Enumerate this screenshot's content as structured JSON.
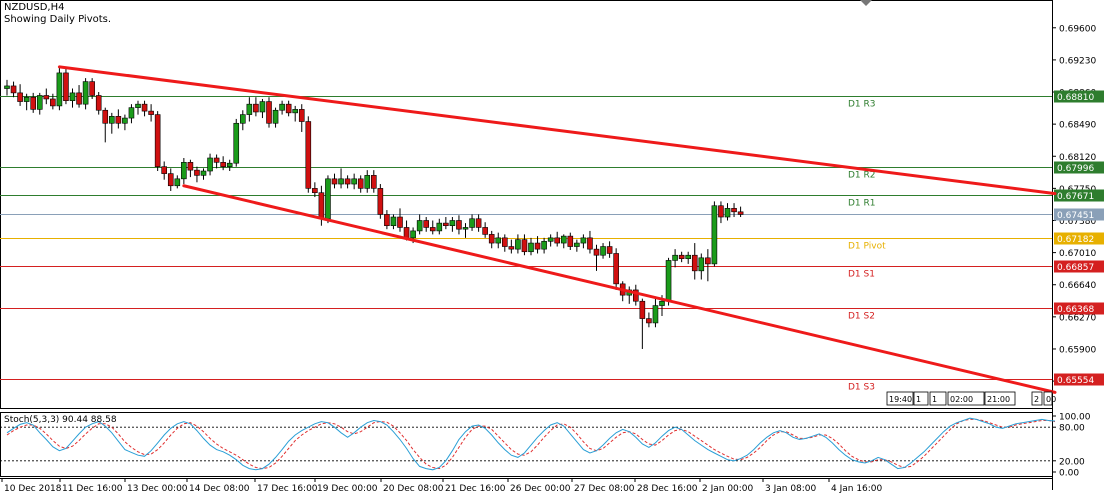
{
  "header": {
    "symbol": "NZDUSD,H4",
    "subtitle": "Showing Daily Pivots."
  },
  "indicator": {
    "label": "Stoch(5,3,3) 90.44 88.58"
  },
  "time_labels": [
    "10 Dec 2018",
    "11 Dec 16:00",
    "13 Dec 00:00",
    "14 Dec 08:00",
    "17 Dec 16:00",
    "19 Dec 00:00",
    "20 Dec 08:00",
    "21 Dec 16:00",
    "26 Dec 00:00",
    "27 Dec 08:00",
    "28 Dec 16:00",
    "2 Jan 00:00",
    "3 Jan 08:00",
    "4 Jan 16:00"
  ],
  "period_buttons": [
    "19:40",
    "1",
    "1",
    "02:00",
    "21:00",
    "2",
    "00"
  ],
  "colors": {
    "bull": "#1a9b1a",
    "bear": "#d01010",
    "trend": "#ee1a1a",
    "resistance": "#2e7d2e",
    "support": "#d42020",
    "pivot": "#e7b000",
    "current": "#8aa0b8",
    "stoch_main": "#2a9fd6",
    "stoch_signal": "#e03030"
  },
  "chart_data": {
    "type": "candlestick",
    "ylim": [
      0.6522,
      0.6992
    ],
    "y_ticks": [
      "0.69600",
      "0.69230",
      "0.68860",
      "0.68490",
      "0.68120",
      "0.67750",
      "0.67380",
      "0.67010",
      "0.66640",
      "0.66270",
      "0.65900",
      "0.65530"
    ],
    "pivots": [
      {
        "label": "D1 R3",
        "value": 0.6881,
        "tag": "0.68810",
        "kind": "resistance"
      },
      {
        "label": "D1 R2",
        "value": 0.67996,
        "tag": "0.67996",
        "kind": "resistance"
      },
      {
        "label": "D1 R1",
        "value": 0.67671,
        "tag": "0.67671",
        "kind": "resistance"
      },
      {
        "label": "D1 Pivot",
        "value": 0.67182,
        "tag": "0.67182",
        "kind": "pivot"
      },
      {
        "label": "D1 S1",
        "value": 0.66857,
        "tag": "0.66857",
        "kind": "support"
      },
      {
        "label": "D1 S2",
        "value": 0.66368,
        "tag": "0.66368",
        "kind": "support"
      },
      {
        "label": "D1 S3",
        "value": 0.65554,
        "tag": "0.65554",
        "kind": "support"
      }
    ],
    "current_price": {
      "value": 0.67451,
      "tag": "0.67451"
    },
    "candles": [
      [
        0.689,
        0.69,
        0.6882,
        0.6893
      ],
      [
        0.6893,
        0.6898,
        0.688,
        0.6885
      ],
      [
        0.6885,
        0.6895,
        0.687,
        0.6875
      ],
      [
        0.6875,
        0.6884,
        0.6865,
        0.688
      ],
      [
        0.688,
        0.6885,
        0.6862,
        0.6866
      ],
      [
        0.6866,
        0.6885,
        0.686,
        0.6882
      ],
      [
        0.6882,
        0.689,
        0.6872,
        0.6878
      ],
      [
        0.6878,
        0.6884,
        0.6866,
        0.687
      ],
      [
        0.687,
        0.6915,
        0.6865,
        0.6908
      ],
      [
        0.6908,
        0.6914,
        0.6872,
        0.6876
      ],
      [
        0.6876,
        0.689,
        0.6868,
        0.6885
      ],
      [
        0.6885,
        0.6894,
        0.6868,
        0.6872
      ],
      [
        0.6872,
        0.6902,
        0.6866,
        0.6898
      ],
      [
        0.6898,
        0.6902,
        0.6878,
        0.6882
      ],
      [
        0.6882,
        0.6886,
        0.686,
        0.6865
      ],
      [
        0.6865,
        0.6868,
        0.6828,
        0.685
      ],
      [
        0.685,
        0.6862,
        0.6838,
        0.6858
      ],
      [
        0.6858,
        0.6866,
        0.6844,
        0.685
      ],
      [
        0.685,
        0.686,
        0.6842,
        0.6856
      ],
      [
        0.6856,
        0.6872,
        0.685,
        0.6868
      ],
      [
        0.6868,
        0.6876,
        0.686,
        0.6872
      ],
      [
        0.6872,
        0.6876,
        0.6858,
        0.6864
      ],
      [
        0.6864,
        0.6872,
        0.6852,
        0.686
      ],
      [
        0.686,
        0.6864,
        0.6795,
        0.68
      ],
      [
        0.68,
        0.6806,
        0.6785,
        0.6792
      ],
      [
        0.6792,
        0.6798,
        0.6772,
        0.6778
      ],
      [
        0.6778,
        0.679,
        0.6775,
        0.6786
      ],
      [
        0.6786,
        0.681,
        0.678,
        0.6805
      ],
      [
        0.6805,
        0.6808,
        0.6788,
        0.6796
      ],
      [
        0.6796,
        0.68,
        0.6782,
        0.679
      ],
      [
        0.679,
        0.6798,
        0.6785,
        0.6795
      ],
      [
        0.6795,
        0.6815,
        0.679,
        0.681
      ],
      [
        0.681,
        0.6814,
        0.6798,
        0.6805
      ],
      [
        0.6805,
        0.6812,
        0.6796,
        0.68
      ],
      [
        0.68,
        0.6808,
        0.6795,
        0.6804
      ],
      [
        0.6804,
        0.6855,
        0.68,
        0.685
      ],
      [
        0.685,
        0.6865,
        0.6842,
        0.686
      ],
      [
        0.686,
        0.688,
        0.6852,
        0.6872
      ],
      [
        0.6872,
        0.688,
        0.6858,
        0.6863
      ],
      [
        0.6863,
        0.6878,
        0.6856,
        0.6875
      ],
      [
        0.6875,
        0.688,
        0.6845,
        0.685
      ],
      [
        0.685,
        0.6868,
        0.6845,
        0.6865
      ],
      [
        0.6865,
        0.6876,
        0.686,
        0.6872
      ],
      [
        0.6872,
        0.6876,
        0.6858,
        0.6862
      ],
      [
        0.6862,
        0.687,
        0.6852,
        0.6866
      ],
      [
        0.6866,
        0.6872,
        0.684,
        0.6852
      ],
      [
        0.6852,
        0.6858,
        0.677,
        0.6775
      ],
      [
        0.6775,
        0.6782,
        0.6765,
        0.677
      ],
      [
        0.677,
        0.6778,
        0.6732,
        0.674
      ],
      [
        0.674,
        0.679,
        0.6735,
        0.6786
      ],
      [
        0.6786,
        0.6792,
        0.6775,
        0.678
      ],
      [
        0.678,
        0.6798,
        0.6775,
        0.6786
      ],
      [
        0.6786,
        0.679,
        0.6775,
        0.678
      ],
      [
        0.678,
        0.6792,
        0.6774,
        0.6786
      ],
      [
        0.6786,
        0.679,
        0.677,
        0.6775
      ],
      [
        0.6775,
        0.6796,
        0.677,
        0.679
      ],
      [
        0.679,
        0.6796,
        0.677,
        0.6775
      ],
      [
        0.6775,
        0.678,
        0.674,
        0.6745
      ],
      [
        0.6745,
        0.675,
        0.6728,
        0.6732
      ],
      [
        0.6732,
        0.6745,
        0.6728,
        0.6742
      ],
      [
        0.6742,
        0.6752,
        0.6725,
        0.673
      ],
      [
        0.673,
        0.6738,
        0.6715,
        0.6718
      ],
      [
        0.6718,
        0.673,
        0.6712,
        0.6726
      ],
      [
        0.6726,
        0.6745,
        0.6722,
        0.6738
      ],
      [
        0.6738,
        0.6742,
        0.6725,
        0.673
      ],
      [
        0.673,
        0.6738,
        0.6722,
        0.6726
      ],
      [
        0.6726,
        0.674,
        0.6722,
        0.6735
      ],
      [
        0.6735,
        0.6742,
        0.6728,
        0.6732
      ],
      [
        0.6732,
        0.6742,
        0.6725,
        0.6738
      ],
      [
        0.6738,
        0.6744,
        0.6722,
        0.6728
      ],
      [
        0.6728,
        0.6735,
        0.6718,
        0.673
      ],
      [
        0.673,
        0.6745,
        0.6726,
        0.674
      ],
      [
        0.674,
        0.6745,
        0.6725,
        0.673
      ],
      [
        0.673,
        0.6736,
        0.6718,
        0.6722
      ],
      [
        0.6722,
        0.6726,
        0.6706,
        0.6712
      ],
      [
        0.6712,
        0.6724,
        0.6706,
        0.6718
      ],
      [
        0.6718,
        0.6722,
        0.6702,
        0.6708
      ],
      [
        0.6708,
        0.6716,
        0.67,
        0.6705
      ],
      [
        0.6705,
        0.6722,
        0.67,
        0.6716
      ],
      [
        0.6716,
        0.6722,
        0.6698,
        0.6702
      ],
      [
        0.6702,
        0.6718,
        0.6698,
        0.6712
      ],
      [
        0.6712,
        0.672,
        0.67,
        0.6705
      ],
      [
        0.6705,
        0.6718,
        0.67,
        0.6714
      ],
      [
        0.6714,
        0.6722,
        0.6708,
        0.6718
      ],
      [
        0.6718,
        0.6725,
        0.6708,
        0.6712
      ],
      [
        0.6712,
        0.6722,
        0.6706,
        0.672
      ],
      [
        0.672,
        0.6724,
        0.6704,
        0.6708
      ],
      [
        0.6708,
        0.6716,
        0.6702,
        0.6712
      ],
      [
        0.6712,
        0.6722,
        0.6706,
        0.6718
      ],
      [
        0.6718,
        0.6726,
        0.67,
        0.6705
      ],
      [
        0.6705,
        0.671,
        0.668,
        0.6698
      ],
      [
        0.6698,
        0.6712,
        0.6694,
        0.6708
      ],
      [
        0.6708,
        0.6714,
        0.6695,
        0.67
      ],
      [
        0.67,
        0.6706,
        0.6658,
        0.6665
      ],
      [
        0.6665,
        0.6668,
        0.6645,
        0.6652
      ],
      [
        0.6652,
        0.6662,
        0.6642,
        0.6658
      ],
      [
        0.6658,
        0.6664,
        0.664,
        0.6645
      ],
      [
        0.6645,
        0.6648,
        0.659,
        0.6625
      ],
      [
        0.6625,
        0.6632,
        0.6615,
        0.662
      ],
      [
        0.662,
        0.6648,
        0.6615,
        0.664
      ],
      [
        0.664,
        0.6652,
        0.6628,
        0.6645
      ],
      [
        0.6645,
        0.6695,
        0.664,
        0.6692
      ],
      [
        0.6692,
        0.6705,
        0.6684,
        0.6698
      ],
      [
        0.6698,
        0.6702,
        0.669,
        0.6694
      ],
      [
        0.6694,
        0.6702,
        0.6688,
        0.6698
      ],
      [
        0.6698,
        0.6712,
        0.667,
        0.668
      ],
      [
        0.668,
        0.67,
        0.667,
        0.6695
      ],
      [
        0.6695,
        0.6705,
        0.6668,
        0.6688
      ],
      [
        0.6688,
        0.676,
        0.6685,
        0.6755
      ],
      [
        0.6755,
        0.676,
        0.6735,
        0.6742
      ],
      [
        0.6742,
        0.6758,
        0.6738,
        0.6752
      ],
      [
        0.6752,
        0.6758,
        0.6742,
        0.6748
      ],
      [
        0.6748,
        0.6754,
        0.6742,
        0.6745
      ]
    ],
    "trendlines": [
      {
        "name": "upper",
        "from": {
          "bar": 8,
          "price": 0.6915
        },
        "to": {
          "bar": 160,
          "price": 0.6769
        }
      },
      {
        "name": "lower",
        "from": {
          "bar": 27,
          "price": 0.6778
        },
        "to": {
          "bar": 160,
          "price": 0.654
        }
      }
    ],
    "stochastic": {
      "levels": [
        100,
        80,
        20,
        0
      ],
      "level_labels": [
        "100.00",
        "80.00",
        "20.00",
        "0.00"
      ],
      "main": [
        70,
        78,
        85,
        88,
        84,
        70,
        58,
        45,
        38,
        42,
        55,
        68,
        80,
        86,
        90,
        82,
        70,
        55,
        40,
        35,
        30,
        28,
        38,
        52,
        66,
        78,
        86,
        90,
        86,
        74,
        60,
        48,
        40,
        36,
        30,
        22,
        12,
        6,
        4,
        6,
        14,
        26,
        40,
        55,
        66,
        74,
        80,
        86,
        90,
        88,
        80,
        70,
        62,
        70,
        80,
        88,
        92,
        90,
        84,
        72,
        58,
        42,
        24,
        10,
        6,
        4,
        8,
        20,
        38,
        58,
        72,
        82,
        84,
        78,
        66,
        52,
        40,
        30,
        26,
        34,
        48,
        62,
        74,
        84,
        88,
        82,
        68,
        54,
        40,
        34,
        38,
        48,
        60,
        70,
        76,
        72,
        62,
        50,
        44,
        52,
        64,
        74,
        80,
        76,
        66,
        56,
        48,
        40,
        34,
        28,
        22,
        20,
        24,
        30,
        40,
        52,
        62,
        70,
        74,
        70,
        62,
        58,
        60,
        64,
        68,
        62,
        52,
        40,
        30,
        22,
        18,
        16,
        20,
        26,
        22,
        14,
        6,
        8,
        16,
        26,
        36,
        48,
        60,
        72,
        82,
        88,
        92,
        96,
        94,
        90,
        86,
        80,
        78,
        82,
        86,
        88,
        90,
        92,
        94,
        92,
        91
      ],
      "signal": [
        66,
        74,
        80,
        84,
        84,
        78,
        68,
        56,
        46,
        42,
        46,
        56,
        68,
        78,
        86,
        86,
        80,
        68,
        54,
        44,
        36,
        31,
        32,
        40,
        52,
        66,
        78,
        86,
        88,
        82,
        72,
        60,
        50,
        42,
        36,
        30,
        22,
        14,
        8,
        6,
        8,
        16,
        28,
        42,
        56,
        66,
        74,
        80,
        86,
        88,
        86,
        80,
        72,
        68,
        72,
        80,
        88,
        90,
        89,
        82,
        70,
        56,
        40,
        26,
        14,
        8,
        6,
        12,
        26,
        44,
        62,
        76,
        82,
        82,
        76,
        64,
        52,
        40,
        32,
        30,
        36,
        48,
        62,
        74,
        84,
        86,
        80,
        68,
        54,
        42,
        38,
        42,
        52,
        62,
        70,
        72,
        68,
        58,
        50,
        48,
        56,
        66,
        74,
        76,
        72,
        64,
        56,
        48,
        40,
        34,
        28,
        23,
        22,
        26,
        34,
        44,
        56,
        66,
        72,
        72,
        66,
        60,
        60,
        62,
        66,
        66,
        60,
        50,
        38,
        28,
        22,
        18,
        18,
        22,
        22,
        18,
        12,
        8,
        10,
        18,
        28,
        40,
        52,
        64,
        76,
        86,
        92,
        94,
        94,
        92,
        88,
        84,
        80,
        80,
        84,
        86,
        88,
        90,
        92,
        92,
        90
      ]
    }
  }
}
